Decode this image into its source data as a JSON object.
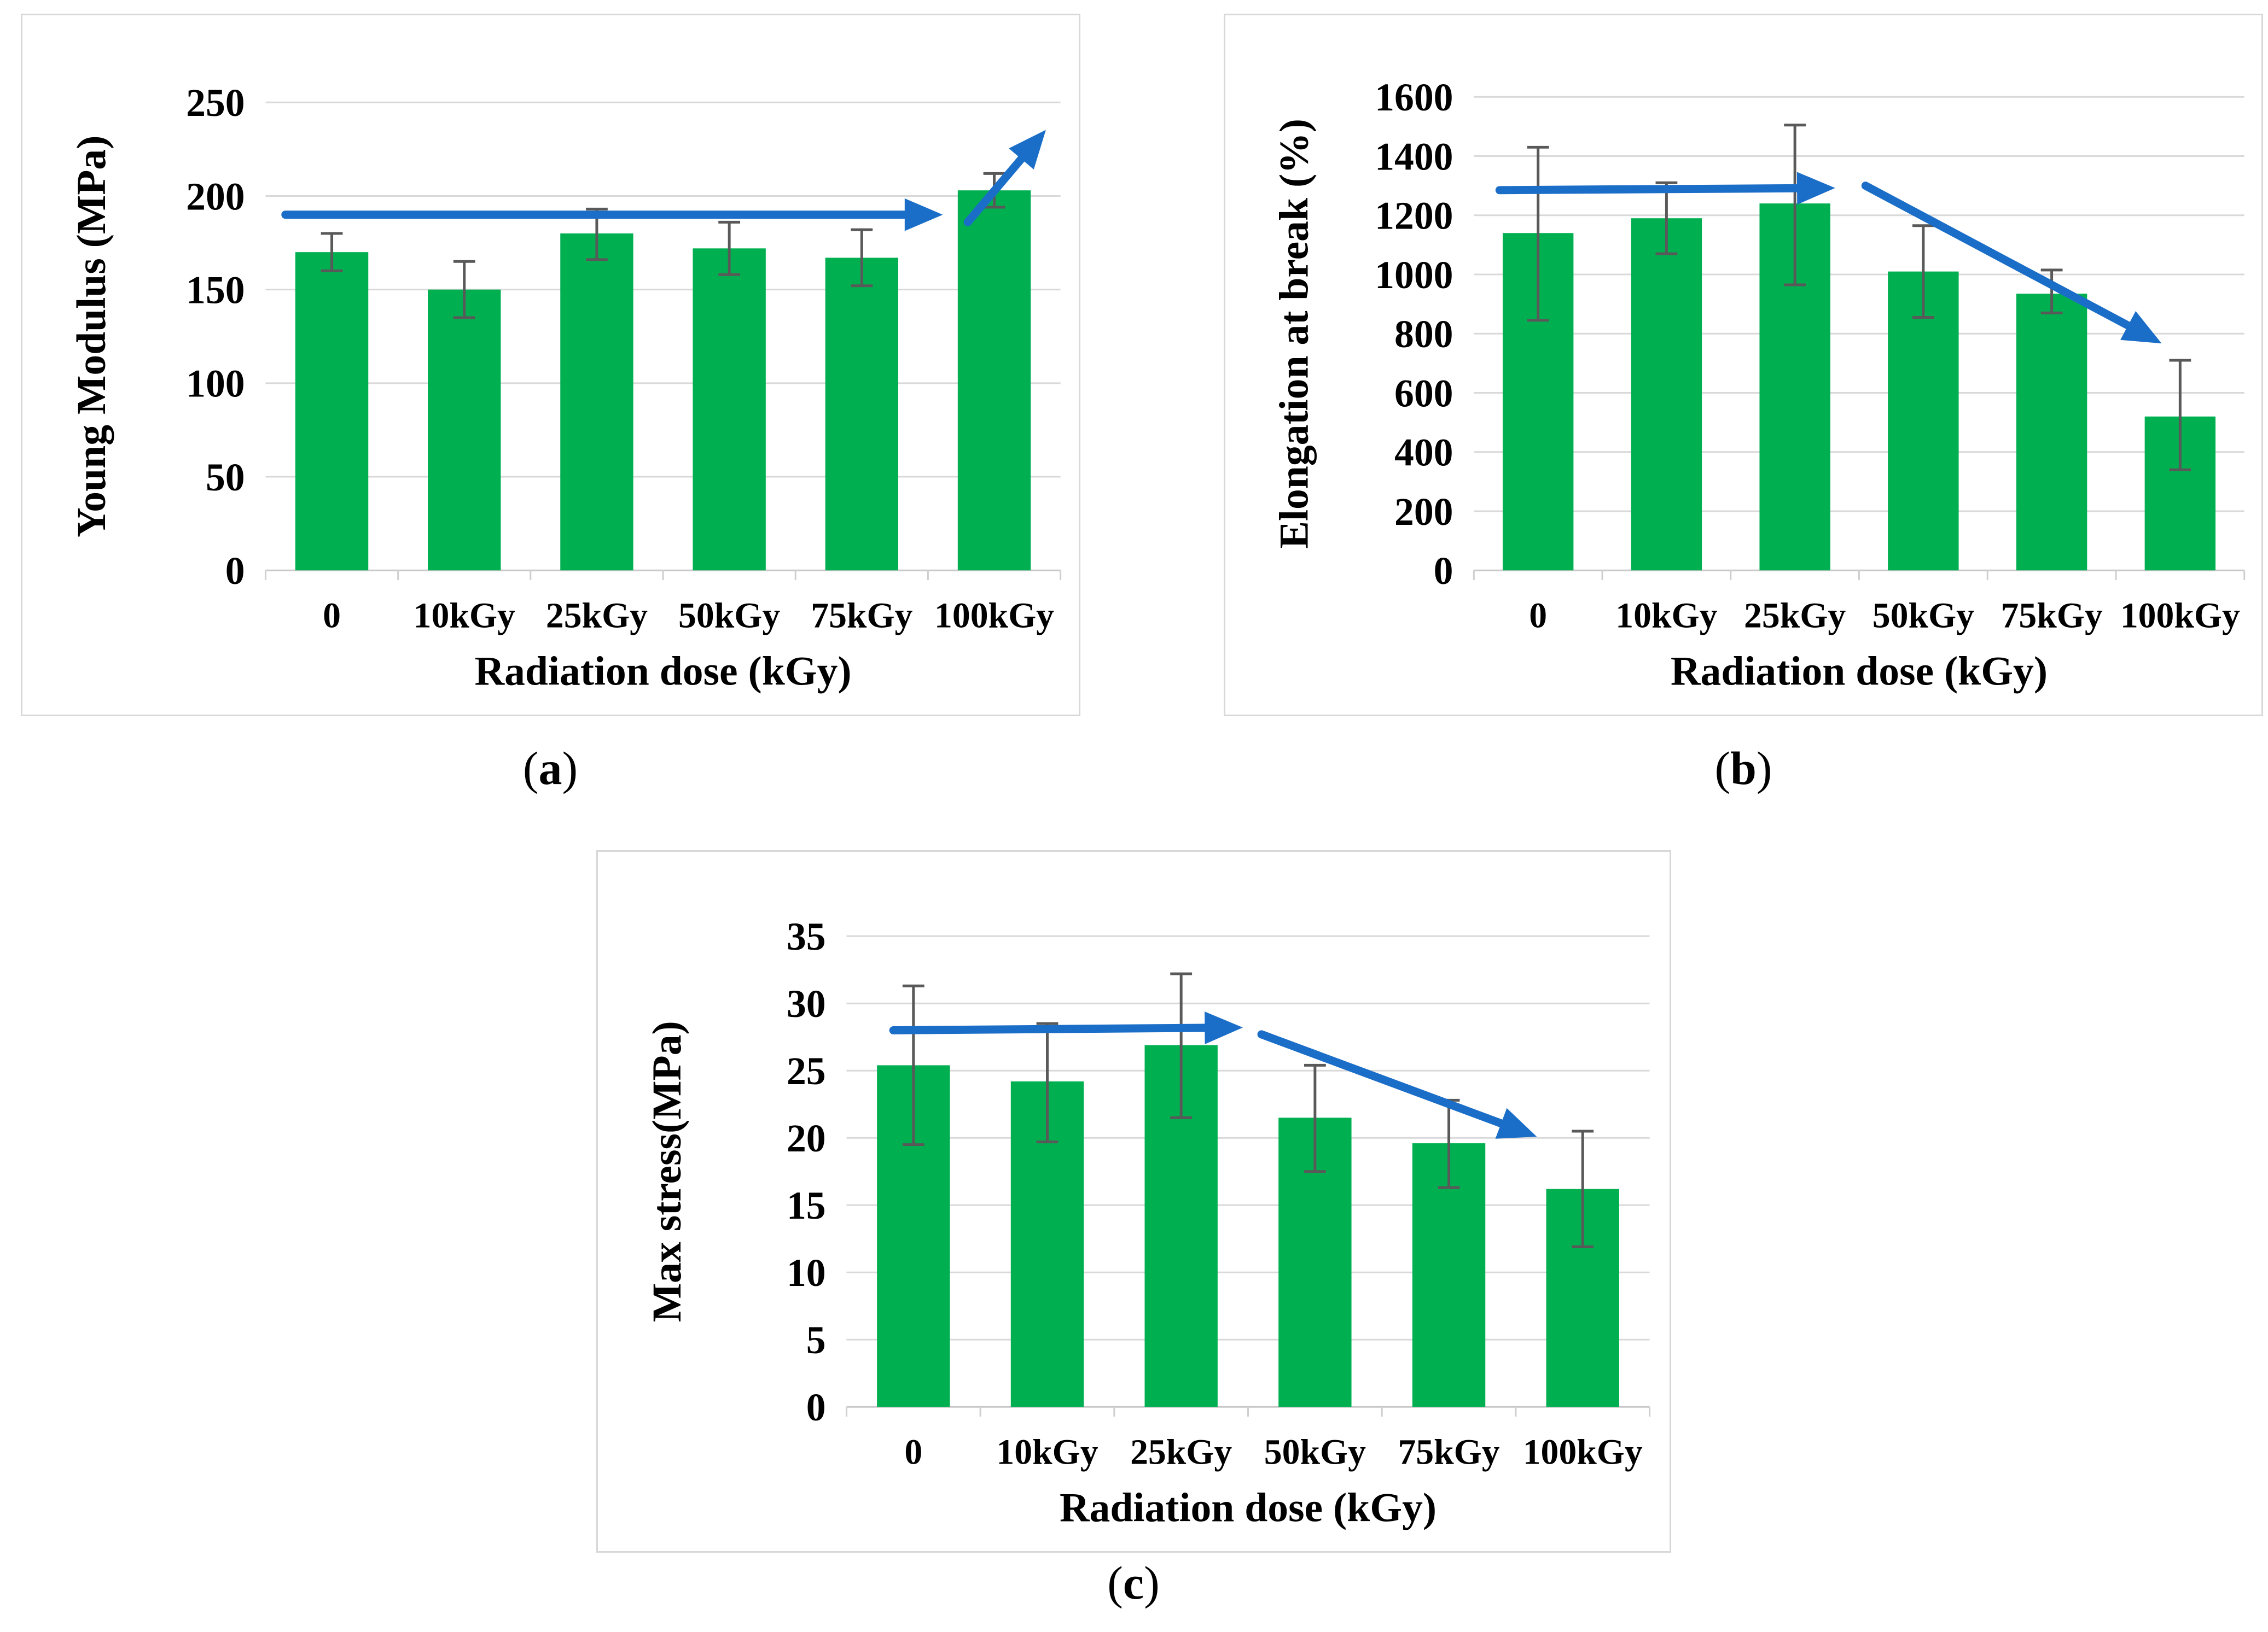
{
  "figure": {
    "background": "#ffffff"
  },
  "colors": {
    "bar": "#00B050",
    "error_bar": "#595959",
    "gridline": "#D9D9D9",
    "baseline": "#C9C9C9",
    "tick_mark": "#CFCFCF",
    "arrow": "#1B6EC8",
    "panel_border": "#D8D8D8",
    "text": "#000000"
  },
  "captions": [
    {
      "pre": "(",
      "letter": "a",
      "post": ")"
    },
    {
      "pre": "(",
      "letter": "b",
      "post": ")"
    },
    {
      "pre": "(",
      "letter": "c",
      "post": ")"
    }
  ],
  "chart_data": [
    {
      "id": "a",
      "type": "bar",
      "title": "",
      "ylabel": "Young Modulus (MPa)",
      "xlabel": "Radiation dose (kGy)",
      "categories": [
        "0",
        "10kGy",
        "25kGy",
        "50kGy",
        "75kGy",
        "100kGy"
      ],
      "values": [
        170,
        150,
        180,
        172,
        167,
        203
      ],
      "error_low": [
        160,
        135,
        166,
        158,
        152,
        194
      ],
      "error_high": [
        180,
        165,
        193,
        186,
        182,
        212
      ],
      "ylim": [
        0,
        250
      ],
      "yticks": [
        0,
        50,
        100,
        150,
        200,
        250
      ],
      "grid": true,
      "legend": "none",
      "annotations": [
        {
          "type": "arrow",
          "label": "plateau-trend",
          "x1": -0.35,
          "y1": 190,
          "x2": 4.55,
          "y2": 190
        },
        {
          "type": "arrow",
          "label": "increase-trend",
          "x1": 4.8,
          "y1": 186,
          "x2": 5.35,
          "y2": 232
        }
      ]
    },
    {
      "id": "b",
      "type": "bar",
      "title": "",
      "ylabel": "Elongation at break (%)",
      "xlabel": "Radiation dose (kGy)",
      "categories": [
        "0",
        "10kGy",
        "25kGy",
        "50kGy",
        "75kGy",
        "100kGy"
      ],
      "values": [
        1140,
        1190,
        1240,
        1010,
        935,
        520
      ],
      "error_low": [
        845,
        1070,
        965,
        855,
        870,
        340
      ],
      "error_high": [
        1430,
        1310,
        1505,
        1165,
        1015,
        710
      ],
      "ylim": [
        0,
        1600
      ],
      "yticks": [
        0,
        200,
        400,
        600,
        800,
        1000,
        1200,
        1400,
        1600
      ],
      "grid": true,
      "legend": "none",
      "annotations": [
        {
          "type": "arrow",
          "label": "plateau-trend",
          "x1": -0.3,
          "y1": 1285,
          "x2": 2.25,
          "y2": 1292
        },
        {
          "type": "arrow",
          "label": "decrease-trend",
          "x1": 2.55,
          "y1": 1300,
          "x2": 4.8,
          "y2": 780
        }
      ]
    },
    {
      "id": "c",
      "type": "bar",
      "title": "",
      "ylabel": "Max stress(MPa)",
      "xlabel": "Radiation dose (kGy)",
      "categories": [
        "0",
        "10kGy",
        "25kGy",
        "50kGy",
        "75kGy",
        "100kGy"
      ],
      "values": [
        25.4,
        24.2,
        26.9,
        21.5,
        19.6,
        16.2
      ],
      "error_low": [
        19.5,
        19.7,
        21.5,
        17.5,
        16.3,
        11.9
      ],
      "error_high": [
        31.3,
        28.5,
        32.2,
        25.4,
        22.8,
        20.5
      ],
      "ylim": [
        0,
        35
      ],
      "yticks": [
        0,
        5,
        10,
        15,
        20,
        25,
        30,
        35
      ],
      "grid": true,
      "legend": "none",
      "annotations": [
        {
          "type": "arrow",
          "label": "plateau-trend",
          "x1": -0.15,
          "y1": 28.0,
          "x2": 2.4,
          "y2": 28.2
        },
        {
          "type": "arrow",
          "label": "decrease-trend",
          "x1": 2.6,
          "y1": 27.7,
          "x2": 4.6,
          "y2": 20.3
        }
      ]
    }
  ]
}
